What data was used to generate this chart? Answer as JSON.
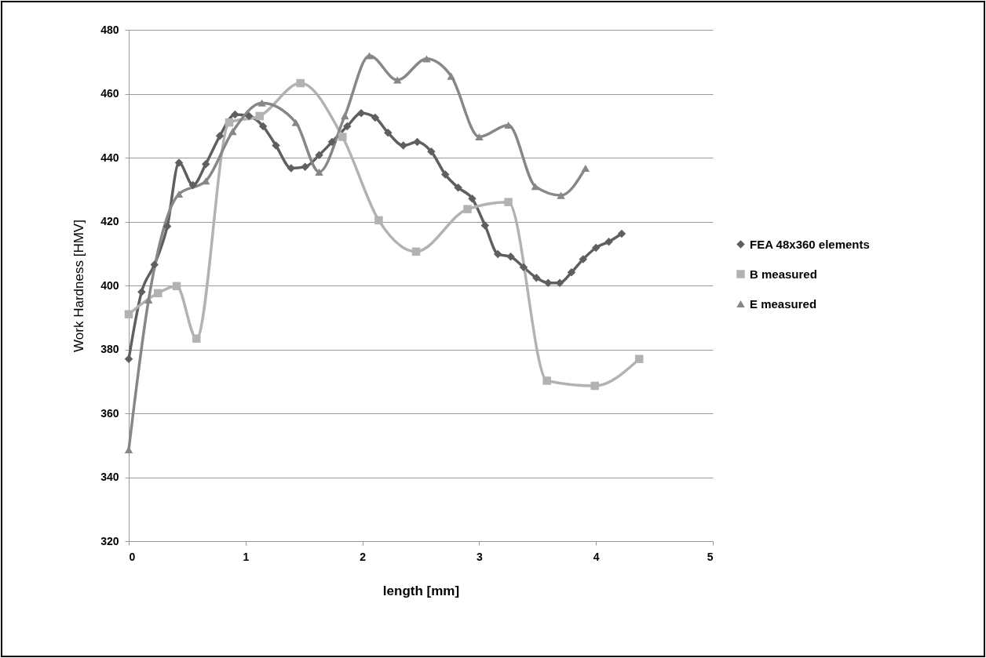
{
  "chart_data": {
    "type": "line",
    "xlabel": "length [mm]",
    "ylabel": "Work Hardness [HMV]",
    "xlim": [
      0,
      5
    ],
    "xticks": [
      0,
      1,
      2,
      3,
      4,
      5
    ],
    "ylim": [
      320,
      480
    ],
    "yticks": [
      320,
      340,
      360,
      380,
      400,
      420,
      440,
      460,
      480
    ],
    "grid": "y",
    "legend": "right",
    "series": [
      {
        "name": "FEA 48x360 elements",
        "color": "#5f5f5f",
        "marker": "diamond",
        "x": [
          0,
          0.11,
          0.22,
          0.33,
          0.43,
          0.55,
          0.66,
          0.78,
          0.91,
          1.03,
          1.15,
          1.26,
          1.39,
          1.51,
          1.63,
          1.74,
          1.87,
          1.99,
          2.11,
          2.22,
          2.35,
          2.47,
          2.59,
          2.71,
          2.82,
          2.94,
          3.05,
          3.16,
          3.27,
          3.38,
          3.49,
          3.59,
          3.69,
          3.79,
          3.89,
          4.0,
          4.11,
          4.22
        ],
        "values": [
          377,
          398,
          406.5,
          418.5,
          438.4,
          431.4,
          438,
          446.8,
          453.5,
          453,
          449.8,
          443.8,
          436.7,
          437.1,
          440.8,
          444.9,
          449.8,
          453.9,
          452.5,
          447.8,
          443.8,
          444.9,
          441.9,
          434.7,
          430.6,
          427.2,
          418.8,
          409.8,
          409,
          405.7,
          402.4,
          400.8,
          400.8,
          404.1,
          408.2,
          411.8,
          413.7,
          416.2
        ]
      },
      {
        "name": "B measured",
        "color": "#b2b2b2",
        "marker": "square",
        "x": [
          0,
          0.25,
          0.41,
          0.58,
          0.86,
          1.12,
          1.47,
          1.83,
          2.14,
          2.46,
          2.9,
          3.25,
          3.58,
          3.99,
          4.37
        ],
        "values": [
          391,
          397.6,
          399.8,
          383.4,
          451,
          453,
          463.3,
          446.5,
          420.4,
          410.6,
          423.9,
          426.1,
          370.2,
          368.6,
          377
        ]
      },
      {
        "name": "E measured",
        "color": "#878787",
        "marker": "triangle",
        "x": [
          0,
          0.17,
          0.43,
          0.66,
          0.89,
          1.14,
          1.43,
          1.63,
          1.85,
          2.06,
          2.3,
          2.55,
          2.76,
          3.0,
          3.25,
          3.48,
          3.7,
          3.91
        ],
        "values": [
          348.6,
          395.5,
          428.6,
          432.7,
          448.2,
          457.1,
          451,
          435.5,
          453.1,
          471.9,
          464.3,
          470.9,
          465.5,
          446.5,
          450.2,
          431,
          428.2,
          436.7
        ]
      }
    ]
  }
}
